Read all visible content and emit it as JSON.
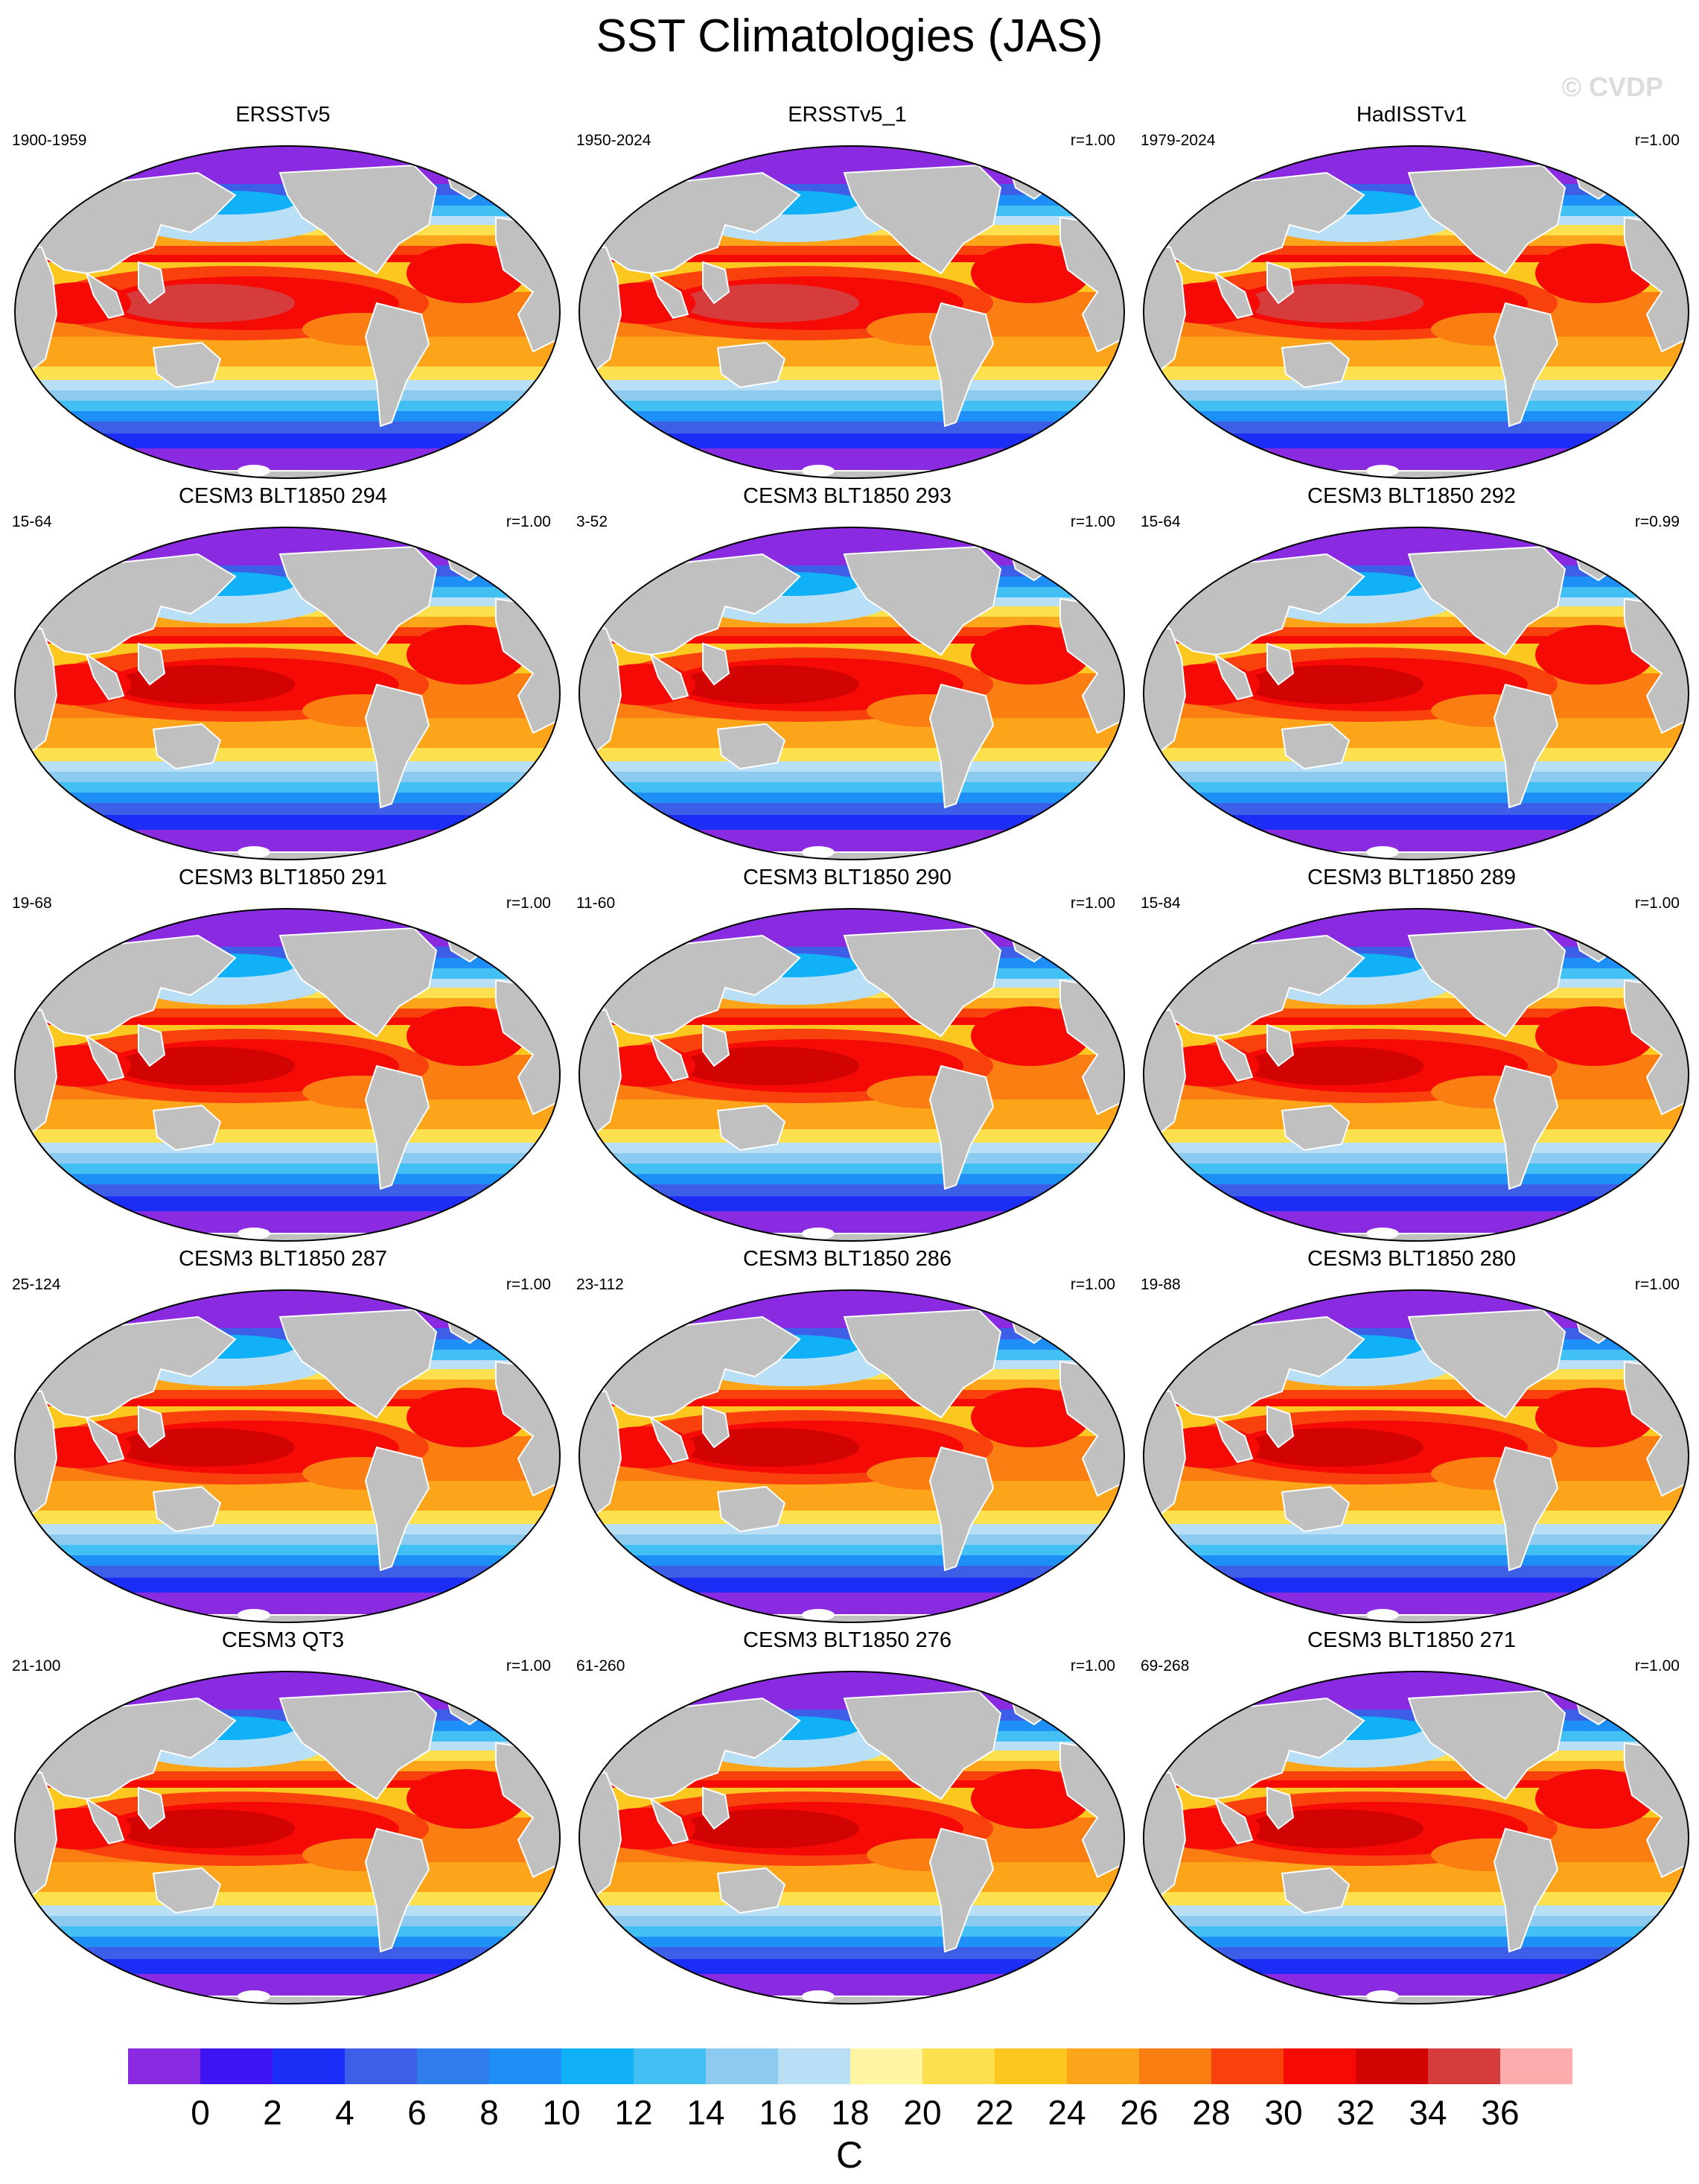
{
  "title": "SST Climatologies (JAS)",
  "watermark": "© CVDP",
  "panels": [
    {
      "title": "ERSSTv5",
      "years": "1900-1959",
      "corr": ""
    },
    {
      "title": "ERSSTv5_1",
      "years": "1950-2024",
      "corr": "r=1.00"
    },
    {
      "title": "HadISSTv1",
      "years": "1979-2024",
      "corr": "r=1.00"
    },
    {
      "title": "CESM3 BLT1850 294",
      "years": "15-64",
      "corr": "r=1.00"
    },
    {
      "title": "CESM3 BLT1850 293",
      "years": "3-52",
      "corr": "r=1.00"
    },
    {
      "title": "CESM3 BLT1850 292",
      "years": "15-64",
      "corr": "r=0.99"
    },
    {
      "title": "CESM3 BLT1850 291",
      "years": "19-68",
      "corr": "r=1.00"
    },
    {
      "title": "CESM3 BLT1850 290",
      "years": "11-60",
      "corr": "r=1.00"
    },
    {
      "title": "CESM3 BLT1850 289",
      "years": "15-84",
      "corr": "r=1.00"
    },
    {
      "title": "CESM3 BLT1850 287",
      "years": "25-124",
      "corr": "r=1.00"
    },
    {
      "title": "CESM3 BLT1850 286",
      "years": "23-112",
      "corr": "r=1.00"
    },
    {
      "title": "CESM3 BLT1850 280",
      "years": "19-88",
      "corr": "r=1.00"
    },
    {
      "title": "CESM3 QT3",
      "years": "21-100",
      "corr": "r=1.00"
    },
    {
      "title": "CESM3 BLT1850 276",
      "years": "61-260",
      "corr": "r=1.00"
    },
    {
      "title": "CESM3 BLT1850 271",
      "years": "69-268",
      "corr": "r=1.00"
    }
  ],
  "colorbar": {
    "unit": "C",
    "tick_labels": [
      "0",
      "2",
      "4",
      "6",
      "8",
      "10",
      "12",
      "14",
      "16",
      "18",
      "20",
      "22",
      "24",
      "26",
      "28",
      "30",
      "32",
      "34",
      "36"
    ],
    "colors": [
      "#8a2be2",
      "#3e14f2",
      "#1c2ef5",
      "#3d5fe8",
      "#2f7ded",
      "#1e8ff7",
      "#11b1f7",
      "#42c0f3",
      "#8ccbef",
      "#b8dff5",
      "#fff5a3",
      "#fde04d",
      "#fcc820",
      "#fca51a",
      "#fb7e12",
      "#f9410e",
      "#f50a05",
      "#d10303",
      "#d63c3c",
      "#fcacac"
    ]
  },
  "land_color": "#c0c0c0"
}
